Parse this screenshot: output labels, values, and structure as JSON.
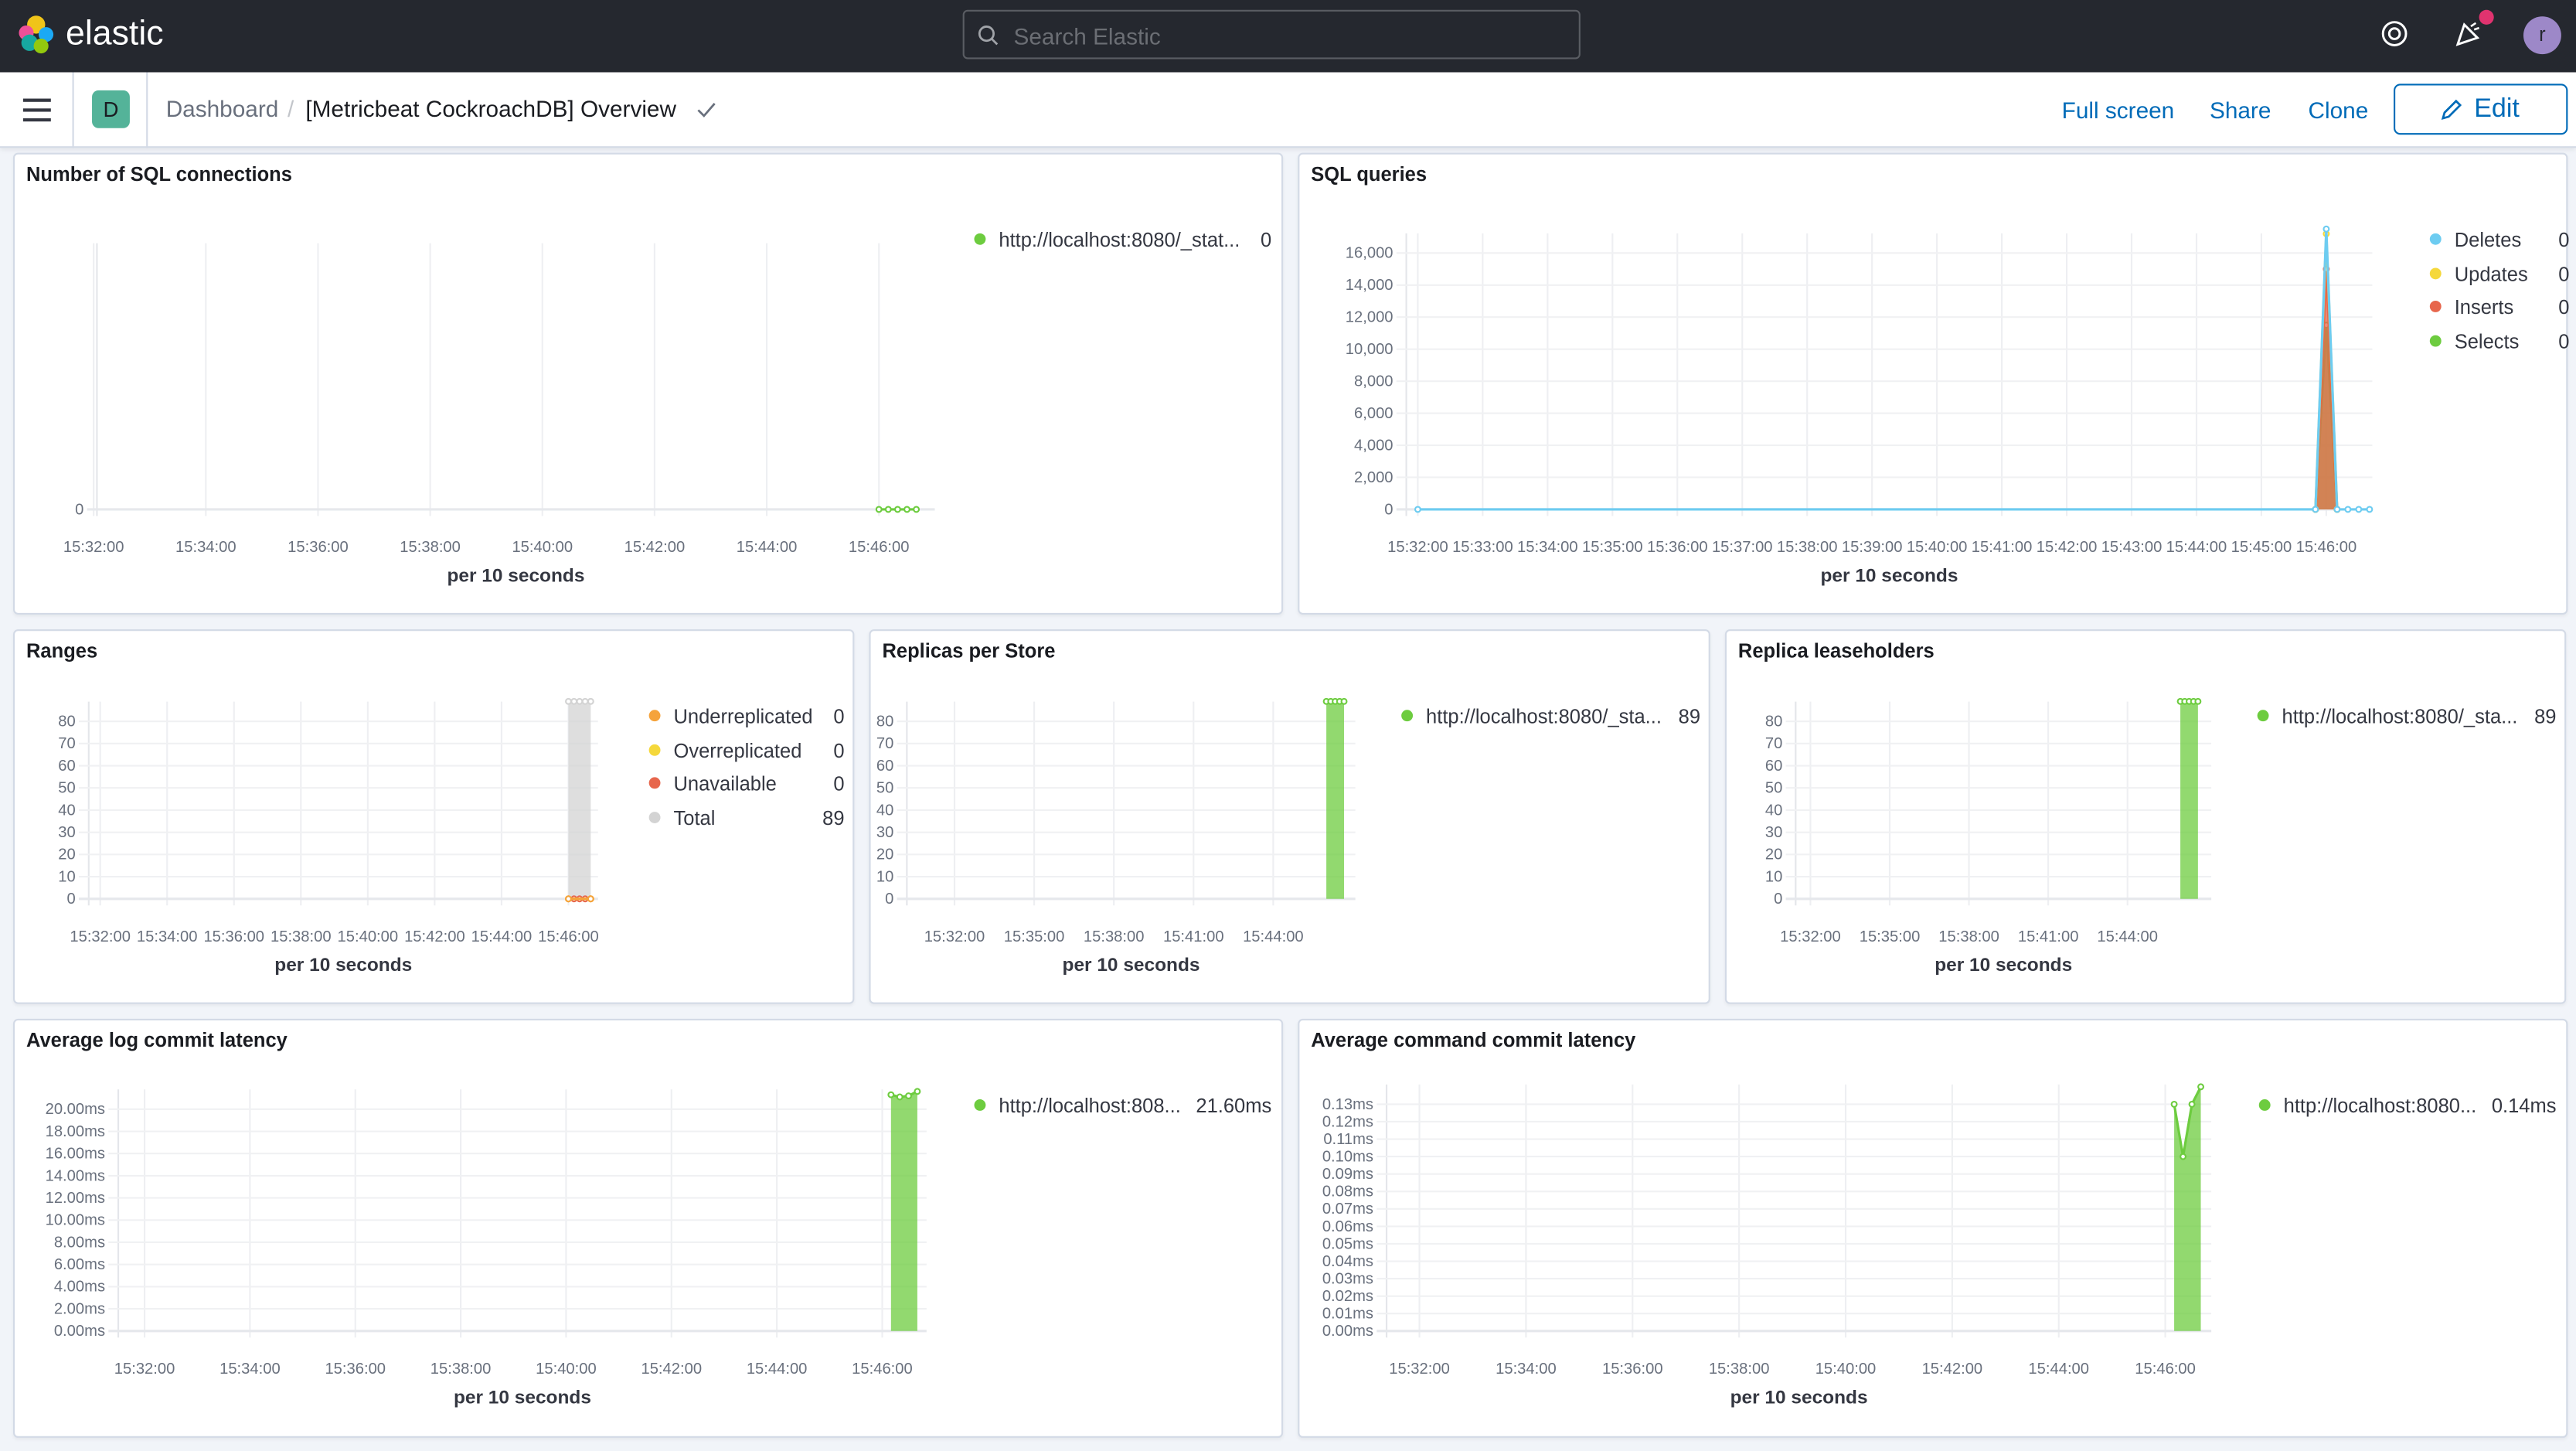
{
  "header": {
    "brand": "elastic",
    "search_placeholder": "Search Elastic",
    "avatar_initial": "r"
  },
  "subheader": {
    "space_initial": "D",
    "breadcrumb_root": "Dashboard",
    "dashboard_title": "[Metricbeat CockroachDB] Overview",
    "full_screen": "Full screen",
    "share": "Share",
    "clone": "Clone",
    "edit": "Edit"
  },
  "colors": {
    "topbar": "#25282f",
    "accent": "#006bb8",
    "green": "#6dcc3f",
    "blue": "#6dccf1",
    "yellow": "#f5d83b",
    "red": "#e7664c",
    "orange": "#f5a33b",
    "grey": "#d3d3d3"
  },
  "chart_data": [
    {
      "type": "line",
      "title": "Number of SQL connections",
      "xlabel": "per 10 seconds",
      "xticks": [
        "15:32:00",
        "15:34:00",
        "15:36:00",
        "15:38:00",
        "15:40:00",
        "15:42:00",
        "15:44:00",
        "15:46:00"
      ],
      "yticks": [
        "0"
      ],
      "ytick_values": [
        0
      ],
      "series": [
        {
          "name": "http://localhost:8080/_stat...",
          "legend_value": "0",
          "color": "#6dcc3f",
          "fill": false,
          "points": [
            [
              "15:46:00",
              0
            ],
            [
              "15:46:10",
              0
            ],
            [
              "15:46:20",
              0
            ],
            [
              "15:46:30",
              0
            ],
            [
              "15:46:40",
              0
            ]
          ]
        }
      ]
    },
    {
      "type": "area",
      "title": "SQL queries",
      "xlabel": "per 10 seconds",
      "xticks": [
        "15:32:00",
        "15:33:00",
        "15:34:00",
        "15:35:00",
        "15:36:00",
        "15:37:00",
        "15:38:00",
        "15:39:00",
        "15:40:00",
        "15:41:00",
        "15:42:00",
        "15:43:00",
        "15:44:00",
        "15:45:00",
        "15:46:00"
      ],
      "yticks": [
        "0",
        "2,000",
        "4,000",
        "6,000",
        "8,000",
        "10,000",
        "12,000",
        "14,000",
        "16,000"
      ],
      "ytick_values": [
        0,
        2000,
        4000,
        6000,
        8000,
        10000,
        12000,
        14000,
        16000
      ],
      "series": [
        {
          "name": "Deletes",
          "legend_value": "0",
          "color": "#6dccf1",
          "fill": false,
          "points": [
            [
              "15:32:00",
              0
            ],
            [
              "15:45:50",
              0
            ],
            [
              "15:46:00",
              17500
            ],
            [
              "15:46:10",
              0
            ],
            [
              "15:46:20",
              0
            ],
            [
              "15:46:30",
              0
            ],
            [
              "15:46:40",
              0
            ]
          ]
        },
        {
          "name": "Updates",
          "legend_value": "0",
          "color": "#f5d83b",
          "fill": false,
          "points": [
            [
              "15:45:50",
              0
            ],
            [
              "15:46:00",
              17200
            ],
            [
              "15:46:10",
              0
            ]
          ]
        },
        {
          "name": "Inserts",
          "legend_value": "0",
          "color": "#e7664c",
          "fill": true,
          "points": [
            [
              "15:45:50",
              0
            ],
            [
              "15:46:00",
              15000
            ],
            [
              "15:46:10",
              0
            ]
          ]
        },
        {
          "name": "Selects",
          "legend_value": "0",
          "color": "#6dcc3f",
          "fill": true,
          "points": [
            [
              "15:45:50",
              0
            ],
            [
              "15:46:00",
              11500
            ],
            [
              "15:46:10",
              0
            ]
          ]
        }
      ]
    },
    {
      "type": "area",
      "title": "Ranges",
      "xlabel": "per 10 seconds",
      "xticks": [
        "15:32:00",
        "15:34:00",
        "15:36:00",
        "15:38:00",
        "15:40:00",
        "15:42:00",
        "15:44:00",
        "15:46:00"
      ],
      "yticks": [
        "0",
        "10",
        "20",
        "30",
        "40",
        "50",
        "60",
        "70",
        "80"
      ],
      "ytick_values": [
        0,
        10,
        20,
        30,
        40,
        50,
        60,
        70,
        80
      ],
      "series": [
        {
          "name": "Underreplicated",
          "legend_value": "0",
          "color": "#f5a33b",
          "fill": false,
          "points": [
            [
              "15:46:00",
              0
            ],
            [
              "15:46:40",
              0
            ]
          ]
        },
        {
          "name": "Overreplicated",
          "legend_value": "0",
          "color": "#f5d83b",
          "fill": false,
          "points": [
            [
              "15:46:00",
              0
            ],
            [
              "15:46:40",
              0
            ]
          ]
        },
        {
          "name": "Unavailable",
          "legend_value": "0",
          "color": "#e7664c",
          "fill": false,
          "points": [
            [
              "15:46:00",
              0
            ],
            [
              "15:46:10",
              0
            ],
            [
              "15:46:20",
              0
            ],
            [
              "15:46:30",
              0
            ],
            [
              "15:46:40",
              0
            ]
          ]
        },
        {
          "name": "Total",
          "legend_value": "89",
          "color": "#d3d3d3",
          "fill": true,
          "points": [
            [
              "15:46:00",
              89
            ],
            [
              "15:46:10",
              89
            ],
            [
              "15:46:20",
              89
            ],
            [
              "15:46:30",
              89
            ],
            [
              "15:46:40",
              89
            ]
          ]
        }
      ]
    },
    {
      "type": "area",
      "title": "Replicas per Store",
      "xlabel": "per 10 seconds",
      "xticks": [
        "15:32:00",
        "15:35:00",
        "15:38:00",
        "15:41:00",
        "15:44:00"
      ],
      "yticks": [
        "0",
        "10",
        "20",
        "30",
        "40",
        "50",
        "60",
        "70",
        "80"
      ],
      "ytick_values": [
        0,
        10,
        20,
        30,
        40,
        50,
        60,
        70,
        80
      ],
      "series": [
        {
          "name": "http://localhost:8080/_sta...",
          "legend_value": "89",
          "color": "#6dcc3f",
          "fill": true,
          "points": [
            [
              "15:46:00",
              89
            ],
            [
              "15:46:10",
              89
            ],
            [
              "15:46:20",
              89
            ],
            [
              "15:46:30",
              89
            ],
            [
              "15:46:40",
              89
            ]
          ]
        }
      ]
    },
    {
      "type": "area",
      "title": "Replica leaseholders",
      "xlabel": "per 10 seconds",
      "xticks": [
        "15:32:00",
        "15:35:00",
        "15:38:00",
        "15:41:00",
        "15:44:00"
      ],
      "yticks": [
        "0",
        "10",
        "20",
        "30",
        "40",
        "50",
        "60",
        "70",
        "80"
      ],
      "ytick_values": [
        0,
        10,
        20,
        30,
        40,
        50,
        60,
        70,
        80
      ],
      "series": [
        {
          "name": "http://localhost:8080/_sta...",
          "legend_value": "89",
          "color": "#6dcc3f",
          "fill": true,
          "points": [
            [
              "15:46:00",
              89
            ],
            [
              "15:46:10",
              89
            ],
            [
              "15:46:20",
              89
            ],
            [
              "15:46:30",
              89
            ],
            [
              "15:46:40",
              89
            ]
          ]
        }
      ]
    },
    {
      "type": "area",
      "title": "Average log commit latency",
      "xlabel": "per 10 seconds",
      "xticks": [
        "15:32:00",
        "15:34:00",
        "15:36:00",
        "15:38:00",
        "15:40:00",
        "15:42:00",
        "15:44:00",
        "15:46:00"
      ],
      "yticks": [
        "0.00ms",
        "2.00ms",
        "4.00ms",
        "6.00ms",
        "8.00ms",
        "10.00ms",
        "12.00ms",
        "14.00ms",
        "16.00ms",
        "18.00ms",
        "20.00ms"
      ],
      "ytick_values": [
        0,
        2,
        4,
        6,
        8,
        10,
        12,
        14,
        16,
        18,
        20
      ],
      "series": [
        {
          "name": "http://localhost:808...",
          "legend_value": "21.60ms",
          "color": "#6dcc3f",
          "fill": true,
          "points": [
            [
              "15:46:10",
              21.3
            ],
            [
              "15:46:20",
              21.1
            ],
            [
              "15:46:30",
              21.2
            ],
            [
              "15:46:40",
              21.6
            ]
          ]
        }
      ]
    },
    {
      "type": "area",
      "title": "Average command commit latency",
      "xlabel": "per 10 seconds",
      "xticks": [
        "15:32:00",
        "15:34:00",
        "15:36:00",
        "15:38:00",
        "15:40:00",
        "15:42:00",
        "15:44:00",
        "15:46:00"
      ],
      "yticks": [
        "0.00ms",
        "0.01ms",
        "0.02ms",
        "0.03ms",
        "0.04ms",
        "0.05ms",
        "0.06ms",
        "0.07ms",
        "0.08ms",
        "0.09ms",
        "0.10ms",
        "0.11ms",
        "0.12ms",
        "0.13ms"
      ],
      "ytick_values": [
        0,
        0.01,
        0.02,
        0.03,
        0.04,
        0.05,
        0.06,
        0.07,
        0.08,
        0.09,
        0.1,
        0.11,
        0.12,
        0.13
      ],
      "series": [
        {
          "name": "http://localhost:8080...",
          "legend_value": "0.14ms",
          "color": "#6dcc3f",
          "fill": true,
          "points": [
            [
              "15:46:10",
              0.13
            ],
            [
              "15:46:20",
              0.1
            ],
            [
              "15:46:30",
              0.13
            ],
            [
              "15:46:40",
              0.14
            ]
          ]
        }
      ]
    }
  ]
}
